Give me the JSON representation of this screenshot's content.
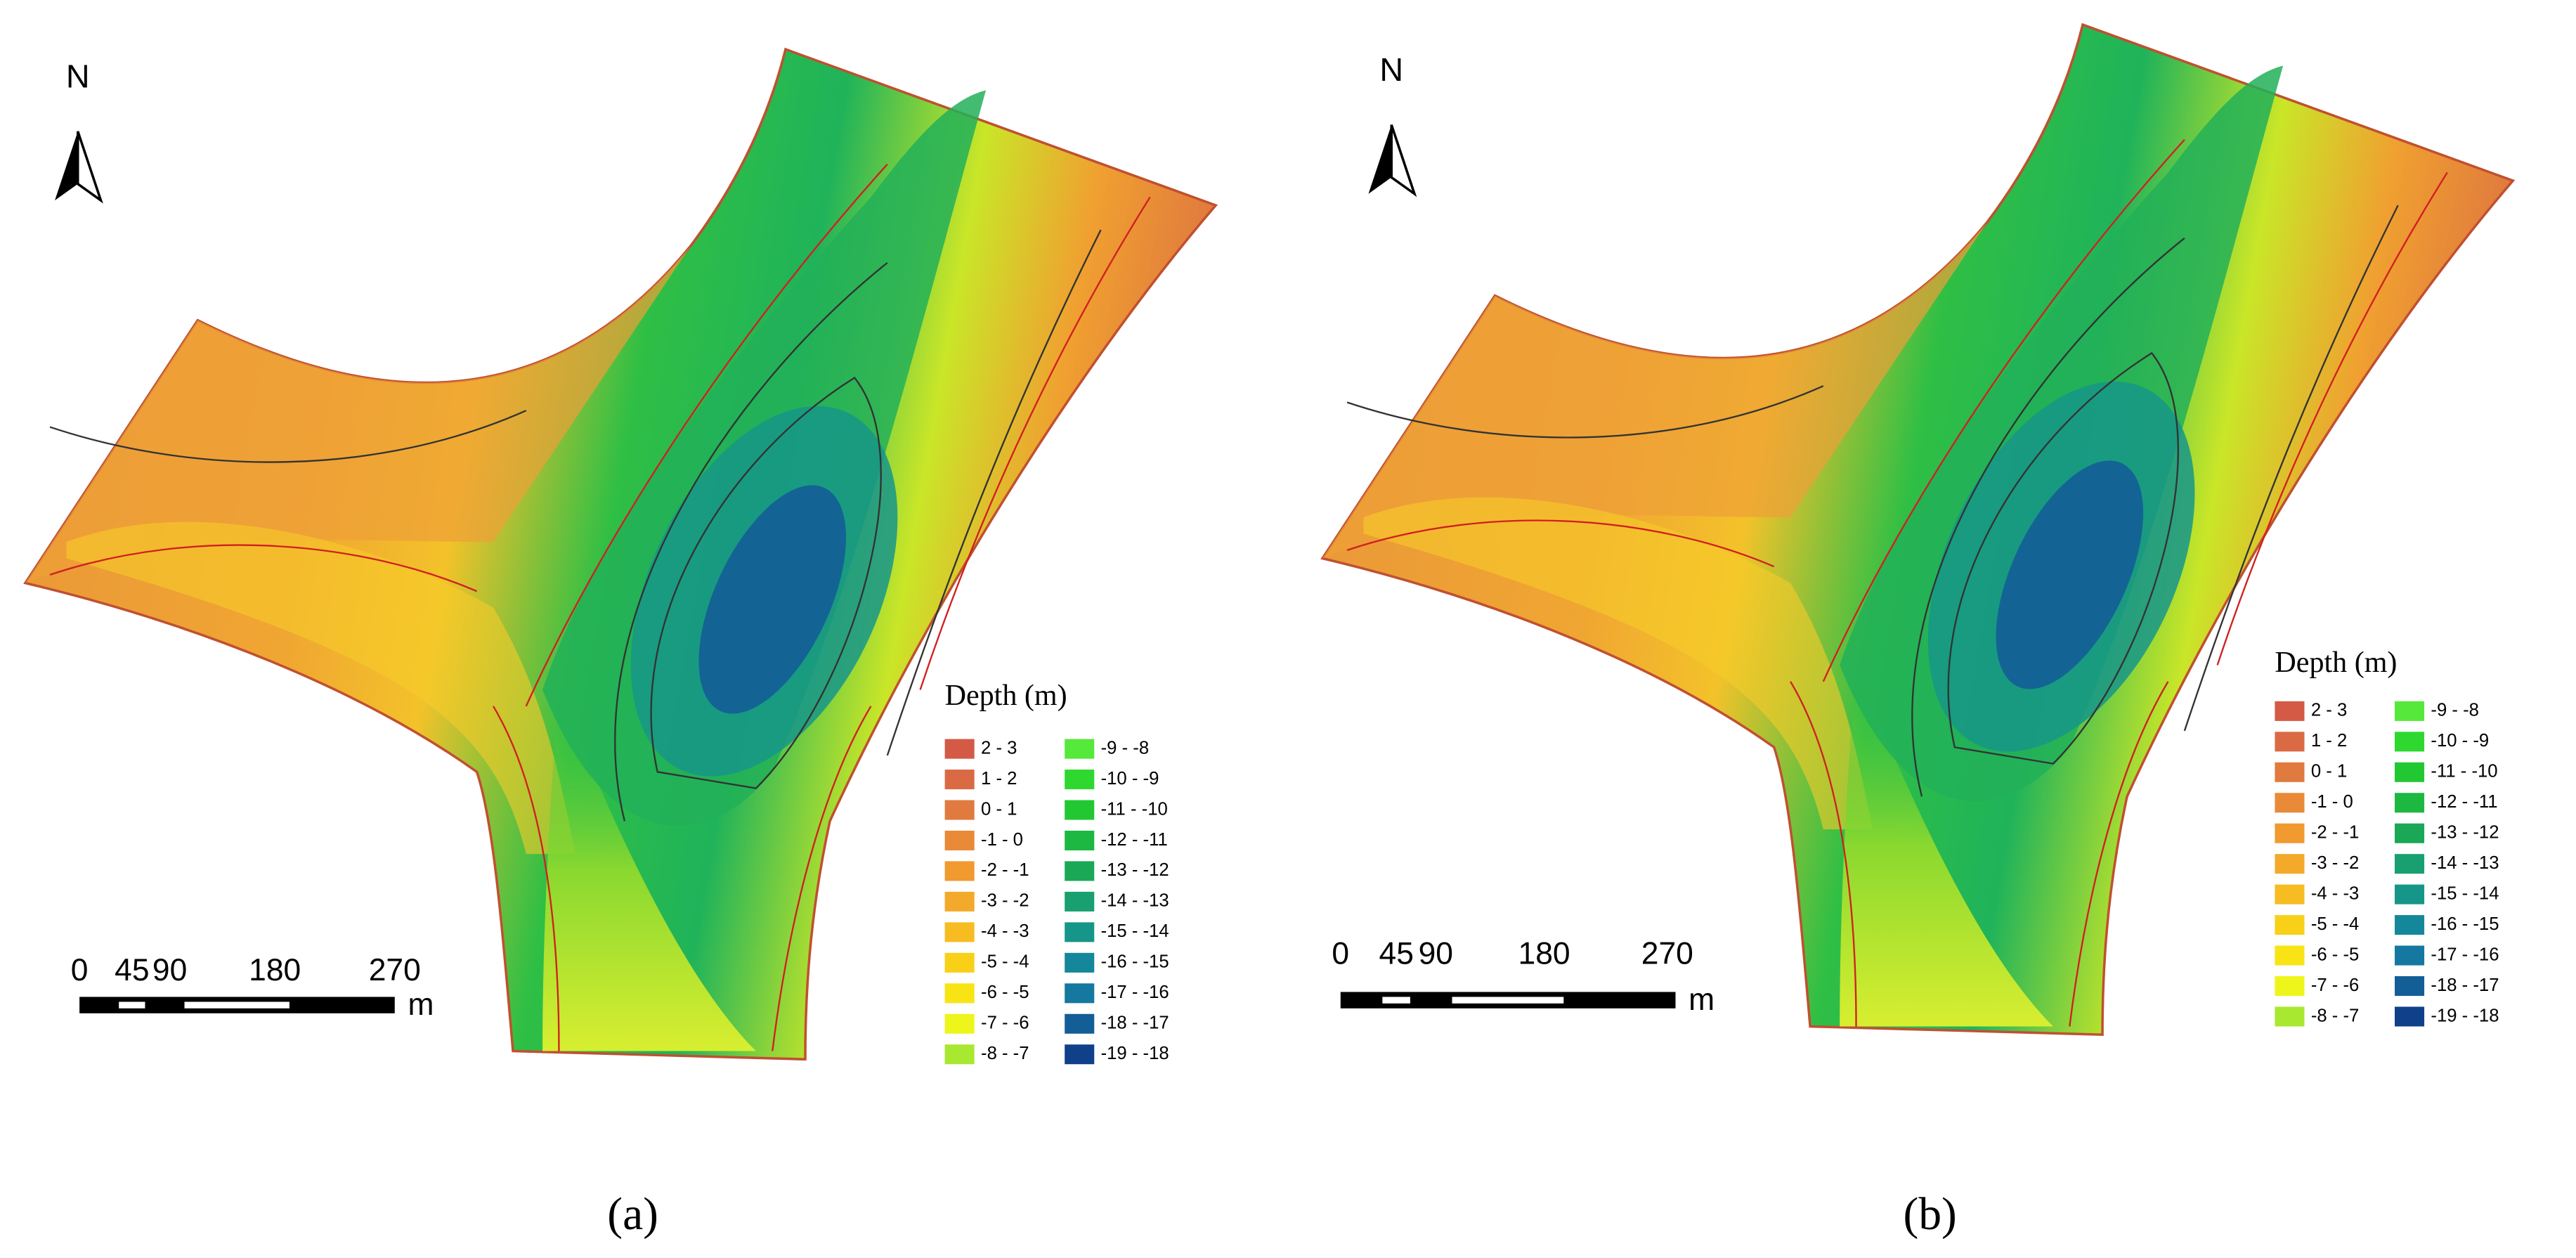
{
  "panels": [
    {
      "caption": "(a)",
      "north": "N",
      "scale_bar": {
        "ticks": [
          "0",
          "45",
          "90",
          "180",
          "270"
        ],
        "unit": "m"
      },
      "legend": {
        "title": "Depth (m)",
        "items": [
          {
            "label": "2 - 3",
            "color": "#d45a45"
          },
          {
            "label": "1 - 2",
            "color": "#da6a44"
          },
          {
            "label": "0 - 1",
            "color": "#e07a3e"
          },
          {
            "label": "-1 - 0",
            "color": "#e98a38"
          },
          {
            "label": "-2 - -1",
            "color": "#f09a30"
          },
          {
            "label": "-3 - -2",
            "color": "#f3aa2a"
          },
          {
            "label": "-4 - -3",
            "color": "#f6bc22"
          },
          {
            "label": "-5 - -4",
            "color": "#f9d018"
          },
          {
            "label": "-6 - -5",
            "color": "#f8e414"
          },
          {
            "label": "-7 - -6",
            "color": "#eef51a"
          },
          {
            "label": "-8 - -7",
            "color": "#a8e830"
          },
          {
            "label": "-9 - -8",
            "color": "#56e83a"
          },
          {
            "label": "-10 - -9",
            "color": "#2ed82e"
          },
          {
            "label": "-11 - -10",
            "color": "#22c832"
          },
          {
            "label": "-12 - -11",
            "color": "#1cb842"
          },
          {
            "label": "-13 - -12",
            "color": "#1aa856"
          },
          {
            "label": "-14 - -13",
            "color": "#18a070"
          },
          {
            "label": "-15 - -14",
            "color": "#169688"
          },
          {
            "label": "-16 - -15",
            "color": "#14889a"
          },
          {
            "label": "-17 - -16",
            "color": "#1478a0"
          },
          {
            "label": "-18 - -17",
            "color": "#135e96"
          },
          {
            "label": "-19 - -18",
            "color": "#10408a"
          }
        ]
      }
    },
    {
      "caption": "(b)",
      "north": "N",
      "scale_bar": {
        "ticks": [
          "0",
          "45",
          "90",
          "180",
          "270"
        ],
        "unit": "m"
      },
      "legend": {
        "title": "Depth (m)",
        "items": [
          {
            "label": "2 - 3",
            "color": "#d45a45"
          },
          {
            "label": "1 - 2",
            "color": "#da6a44"
          },
          {
            "label": "0 - 1",
            "color": "#e07a3e"
          },
          {
            "label": "-1 - 0",
            "color": "#e98a38"
          },
          {
            "label": "-2 - -1",
            "color": "#f09a30"
          },
          {
            "label": "-3 - -2",
            "color": "#f3aa2a"
          },
          {
            "label": "-4 - -3",
            "color": "#f6bc22"
          },
          {
            "label": "-5 - -4",
            "color": "#f9d018"
          },
          {
            "label": "-6 - -5",
            "color": "#f8e414"
          },
          {
            "label": "-7 - -6",
            "color": "#eef51a"
          },
          {
            "label": "-8 - -7",
            "color": "#a8e830"
          },
          {
            "label": "-9 - -8",
            "color": "#56e83a"
          },
          {
            "label": "-10 - -9",
            "color": "#2ed82e"
          },
          {
            "label": "-11 - -10",
            "color": "#22c832"
          },
          {
            "label": "-12 - -11",
            "color": "#1cb842"
          },
          {
            "label": "-13 - -12",
            "color": "#1aa856"
          },
          {
            "label": "-14 - -13",
            "color": "#18a070"
          },
          {
            "label": "-15 - -14",
            "color": "#169688"
          },
          {
            "label": "-16 - -15",
            "color": "#14889a"
          },
          {
            "label": "-17 - -16",
            "color": "#1478a0"
          },
          {
            "label": "-18 - -17",
            "color": "#135e96"
          },
          {
            "label": "-19 - -18",
            "color": "#10408a"
          }
        ]
      }
    }
  ]
}
